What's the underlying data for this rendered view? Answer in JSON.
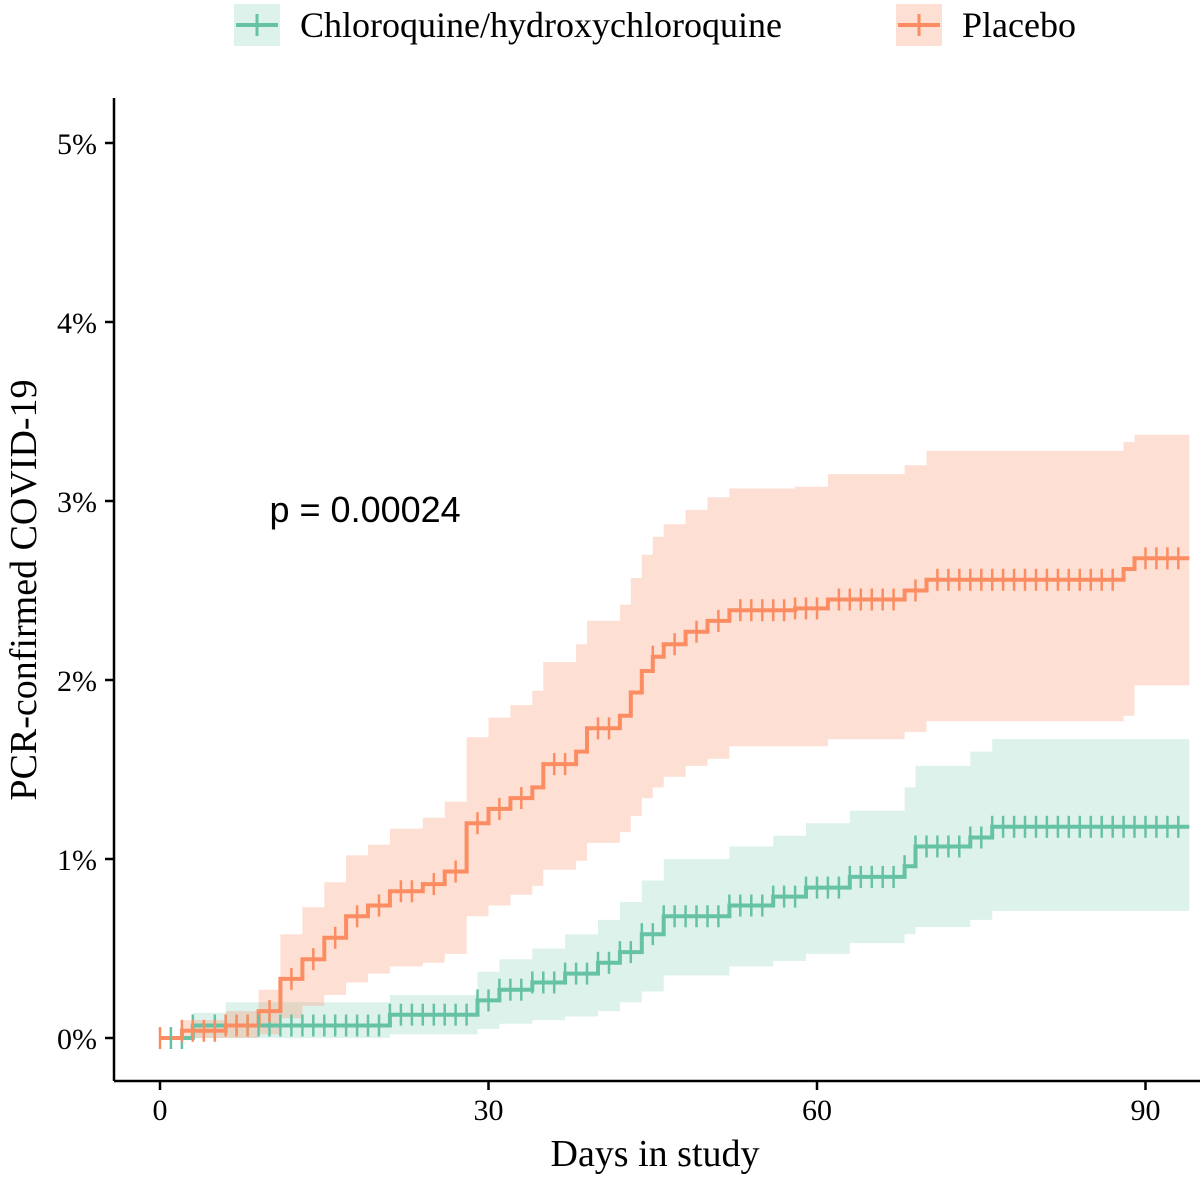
{
  "chart_data": {
    "type": "line",
    "xlabel": "Days in study",
    "ylabel": "PCR-confirmed COVID-19",
    "xlim": [
      -4,
      94
    ],
    "ylim": [
      -0.24,
      5.5
    ],
    "x_ticks": [
      {
        "value": 0,
        "label": "0"
      },
      {
        "value": 30,
        "label": "30"
      },
      {
        "value": 60,
        "label": "60"
      },
      {
        "value": 90,
        "label": "90"
      }
    ],
    "y_ticks": [
      {
        "value": 0,
        "label": "0%"
      },
      {
        "value": 1,
        "label": "1%"
      },
      {
        "value": 2,
        "label": "2%"
      },
      {
        "value": 3,
        "label": "3%"
      },
      {
        "value": 4,
        "label": "4%"
      },
      {
        "value": 5,
        "label": "5%"
      }
    ],
    "annotation": {
      "text": "p = 0.00024",
      "x": 10,
      "y": 2.95
    },
    "legend": {
      "placement": "top"
    },
    "grid": false,
    "series": [
      {
        "name": "Chloroquine/hydroxychloroquine",
        "color": "#66C2A5",
        "steps": [
          [
            0,
            0
          ],
          [
            3,
            0.07
          ],
          [
            21,
            0.13
          ],
          [
            29,
            0.21
          ],
          [
            31,
            0.27
          ],
          [
            34,
            0.31
          ],
          [
            37,
            0.36
          ],
          [
            40,
            0.42
          ],
          [
            42,
            0.48
          ],
          [
            44,
            0.58
          ],
          [
            46,
            0.68
          ],
          [
            52,
            0.74
          ],
          [
            56,
            0.79
          ],
          [
            59,
            0.84
          ],
          [
            63,
            0.9
          ],
          [
            68,
            0.96
          ],
          [
            69,
            1.07
          ],
          [
            74,
            1.12
          ],
          [
            76,
            1.18
          ],
          [
            94,
            1.18
          ]
        ],
        "band": [
          [
            0,
            0,
            0
          ],
          [
            3,
            0,
            0.14
          ],
          [
            6,
            0,
            0.2
          ],
          [
            21,
            0.02,
            0.24
          ],
          [
            29,
            0.05,
            0.37
          ],
          [
            31,
            0.08,
            0.44
          ],
          [
            34,
            0.1,
            0.5
          ],
          [
            37,
            0.12,
            0.58
          ],
          [
            40,
            0.15,
            0.66
          ],
          [
            42,
            0.2,
            0.76
          ],
          [
            44,
            0.26,
            0.88
          ],
          [
            46,
            0.35,
            1.0
          ],
          [
            52,
            0.4,
            1.07
          ],
          [
            56,
            0.43,
            1.13
          ],
          [
            59,
            0.47,
            1.2
          ],
          [
            63,
            0.53,
            1.27
          ],
          [
            68,
            0.58,
            1.4
          ],
          [
            69,
            0.62,
            1.52
          ],
          [
            74,
            0.66,
            1.6
          ],
          [
            76,
            0.71,
            1.67
          ],
          [
            94,
            0.71,
            1.67
          ]
        ],
        "censor_x": [
          1,
          2,
          3,
          5,
          6,
          7,
          8,
          9,
          10,
          11,
          12,
          13,
          14,
          15,
          16,
          17,
          18,
          19,
          20,
          21,
          22,
          23,
          24,
          25,
          26,
          27,
          28,
          29,
          30,
          31,
          32,
          33,
          34,
          35,
          36,
          37,
          38,
          39,
          40,
          41,
          42,
          43,
          44,
          45,
          46,
          47,
          48,
          49,
          50,
          51,
          52,
          53,
          54,
          55,
          56,
          57,
          58,
          59,
          60,
          61,
          62,
          63,
          64,
          65,
          66,
          67,
          68,
          69,
          70,
          71,
          72,
          73,
          74,
          75,
          76,
          77,
          78,
          79,
          80,
          81,
          82,
          83,
          84,
          85,
          86,
          87,
          88,
          89,
          90,
          91,
          92,
          93
        ]
      },
      {
        "name": "Placebo",
        "color": "#FC8D62",
        "steps": [
          [
            0,
            0
          ],
          [
            2,
            0.04
          ],
          [
            6,
            0.07
          ],
          [
            9,
            0.15
          ],
          [
            11,
            0.33
          ],
          [
            13,
            0.44
          ],
          [
            15,
            0.56
          ],
          [
            17,
            0.68
          ],
          [
            19,
            0.74
          ],
          [
            21,
            0.82
          ],
          [
            24,
            0.86
          ],
          [
            26,
            0.93
          ],
          [
            28,
            1.2
          ],
          [
            30,
            1.28
          ],
          [
            32,
            1.34
          ],
          [
            34,
            1.4
          ],
          [
            35,
            1.53
          ],
          [
            38,
            1.6
          ],
          [
            39,
            1.73
          ],
          [
            42,
            1.8
          ],
          [
            43,
            1.93
          ],
          [
            44,
            2.05
          ],
          [
            45,
            2.13
          ],
          [
            46,
            2.2
          ],
          [
            48,
            2.27
          ],
          [
            50,
            2.33
          ],
          [
            52,
            2.39
          ],
          [
            58,
            2.4
          ],
          [
            61,
            2.45
          ],
          [
            68,
            2.5
          ],
          [
            70,
            2.56
          ],
          [
            88,
            2.62
          ],
          [
            89,
            2.68
          ],
          [
            94,
            2.68
          ]
        ],
        "band": [
          [
            0,
            0,
            0
          ],
          [
            2,
            0,
            0.1
          ],
          [
            6,
            0,
            0.15
          ],
          [
            9,
            0.02,
            0.27
          ],
          [
            11,
            0.11,
            0.58
          ],
          [
            13,
            0.18,
            0.73
          ],
          [
            15,
            0.24,
            0.87
          ],
          [
            17,
            0.31,
            1.02
          ],
          [
            19,
            0.36,
            1.08
          ],
          [
            21,
            0.4,
            1.17
          ],
          [
            24,
            0.42,
            1.23
          ],
          [
            26,
            0.47,
            1.32
          ],
          [
            28,
            0.68,
            1.68
          ],
          [
            30,
            0.74,
            1.79
          ],
          [
            32,
            0.8,
            1.86
          ],
          [
            34,
            0.85,
            1.94
          ],
          [
            35,
            0.94,
            2.1
          ],
          [
            38,
            0.99,
            2.2
          ],
          [
            39,
            1.09,
            2.33
          ],
          [
            42,
            1.15,
            2.42
          ],
          [
            43,
            1.24,
            2.57
          ],
          [
            44,
            1.34,
            2.7
          ],
          [
            45,
            1.4,
            2.8
          ],
          [
            46,
            1.46,
            2.87
          ],
          [
            48,
            1.52,
            2.95
          ],
          [
            50,
            1.56,
            3.02
          ],
          [
            52,
            1.63,
            3.07
          ],
          [
            58,
            1.63,
            3.08
          ],
          [
            61,
            1.67,
            3.15
          ],
          [
            68,
            1.71,
            3.2
          ],
          [
            70,
            1.77,
            3.28
          ],
          [
            88,
            1.8,
            3.33
          ],
          [
            89,
            1.97,
            3.37
          ],
          [
            94,
            1.97,
            3.37
          ]
        ],
        "censor_x": [
          0,
          2,
          3,
          4,
          5,
          6,
          7,
          8,
          10,
          12,
          14,
          16,
          18,
          20,
          22,
          23,
          25,
          27,
          29,
          31,
          33,
          36,
          37,
          40,
          41,
          45,
          47,
          49,
          51,
          53,
          54,
          55,
          56,
          57,
          58,
          59,
          60,
          62,
          63,
          64,
          65,
          66,
          67,
          69,
          71,
          72,
          73,
          74,
          75,
          76,
          77,
          78,
          79,
          80,
          81,
          82,
          83,
          84,
          85,
          86,
          87,
          90,
          91,
          92,
          93
        ]
      }
    ]
  }
}
